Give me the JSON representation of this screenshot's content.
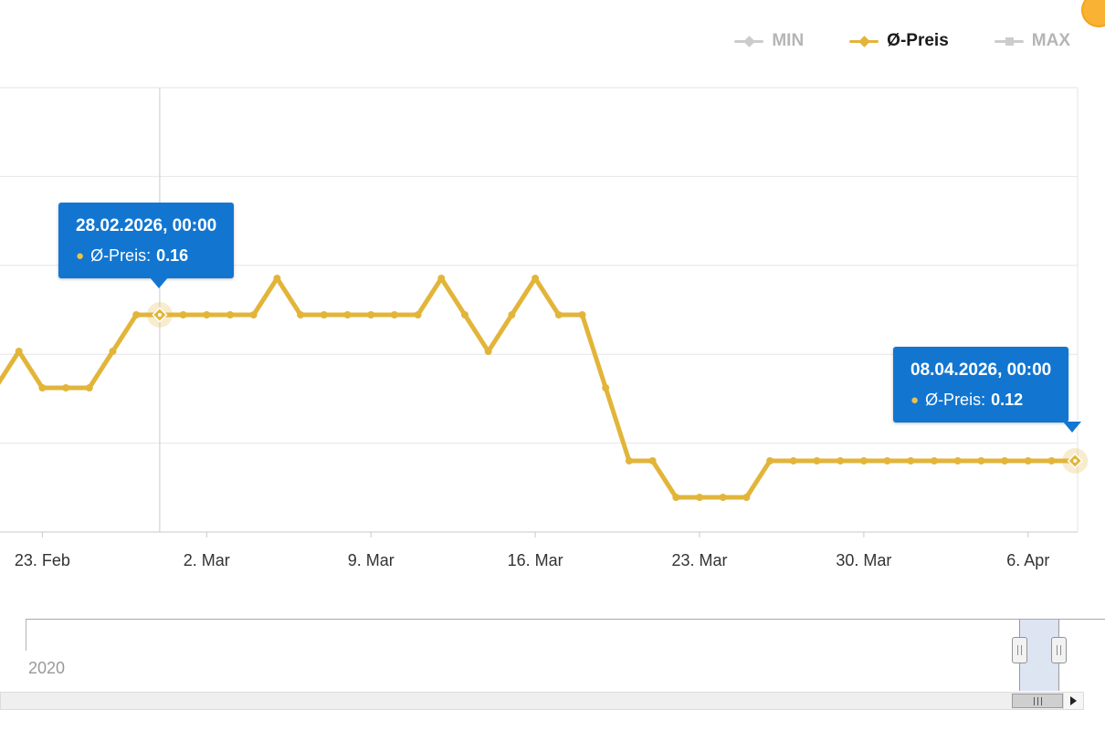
{
  "badge": {
    "color": "#f9b233"
  },
  "legend": {
    "items": [
      {
        "label": "MIN",
        "line_color": "#cccccc",
        "text_color": "#b5b5b5",
        "marker": "diamond"
      },
      {
        "label": "Ø-Preis",
        "line_color": "#e2b53a",
        "text_color": "#1a1a1a",
        "marker": "diamond"
      },
      {
        "label": "MAX",
        "line_color": "#cccccc",
        "text_color": "#b5b5b5",
        "marker": "square"
      }
    ]
  },
  "chart_data": {
    "type": "line",
    "title": "",
    "xlabel": "",
    "ylabel": "",
    "legend_position": "top-right",
    "grid": true,
    "x_tick_labels": [
      "23. Feb",
      "2. Mar",
      "9. Mar",
      "16. Mar",
      "23. Mar",
      "30. Mar",
      "6. Apr"
    ],
    "xticks": [
      {
        "day": 2,
        "label": "23. Feb"
      },
      {
        "day": 9,
        "label": "2. Mar"
      },
      {
        "day": 16,
        "label": "9. Mar"
      },
      {
        "day": 23,
        "label": "16. Mar"
      },
      {
        "day": 30,
        "label": "23. Mar"
      },
      {
        "day": 37,
        "label": "30. Mar"
      },
      {
        "day": 44,
        "label": "6. Apr"
      }
    ],
    "ylim": [
      0.1,
      0.22
    ],
    "dates": [
      "2026-02-21",
      "2026-02-22",
      "2026-02-23",
      "2026-02-24",
      "2026-02-25",
      "2026-02-26",
      "2026-02-27",
      "2026-02-28",
      "2026-03-01",
      "2026-03-02",
      "2026-03-03",
      "2026-03-04",
      "2026-03-05",
      "2026-03-06",
      "2026-03-07",
      "2026-03-08",
      "2026-03-09",
      "2026-03-10",
      "2026-03-11",
      "2026-03-12",
      "2026-03-13",
      "2026-03-14",
      "2026-03-15",
      "2026-03-16",
      "2026-03-17",
      "2026-03-18",
      "2026-03-19",
      "2026-03-20",
      "2026-03-21",
      "2026-03-22",
      "2026-03-23",
      "2026-03-24",
      "2026-03-25",
      "2026-03-26",
      "2026-03-27",
      "2026-03-28",
      "2026-03-29",
      "2026-03-30",
      "2026-03-31",
      "2026-04-01",
      "2026-04-02",
      "2026-04-03",
      "2026-04-04",
      "2026-04-05",
      "2026-04-06",
      "2026-04-07",
      "2026-04-08"
    ],
    "series": [
      {
        "name": "Ø-Preis",
        "color": "#e2b53a",
        "values": [
          0.14,
          0.15,
          0.14,
          0.14,
          0.14,
          0.15,
          0.16,
          0.16,
          0.16,
          0.16,
          0.16,
          0.16,
          0.17,
          0.16,
          0.16,
          0.16,
          0.16,
          0.16,
          0.16,
          0.17,
          0.16,
          0.15,
          0.16,
          0.17,
          0.16,
          0.16,
          0.14,
          0.12,
          0.12,
          0.11,
          0.11,
          0.11,
          0.11,
          0.12,
          0.12,
          0.12,
          0.12,
          0.12,
          0.12,
          0.12,
          0.12,
          0.12,
          0.12,
          0.12,
          0.12,
          0.12,
          0.12
        ]
      }
    ],
    "highlighted_points": [
      {
        "index": 7,
        "date": "2026-02-28",
        "value": 0.16,
        "crosshair": true
      },
      {
        "index": 46,
        "date": "2026-04-08",
        "value": 0.12,
        "crosshair": false
      }
    ]
  },
  "tooltips": [
    {
      "title": "28.02.2026, 00:00",
      "series": "Ø-Preis:",
      "value": "0.16",
      "bullet_color": "#e8c24a",
      "background": "#1276d1"
    },
    {
      "title": "08.04.2026, 00:00",
      "series": "Ø-Preis:",
      "value": "0.12",
      "bullet_color": "#e8c24a",
      "background": "#1276d1"
    }
  ],
  "navigator": {
    "year_label": "2020",
    "selection_color": "rgba(102,133,194,0.22)"
  },
  "scrollbar": {
    "gripper": "|||",
    "right_arrow": "right-triangle"
  }
}
